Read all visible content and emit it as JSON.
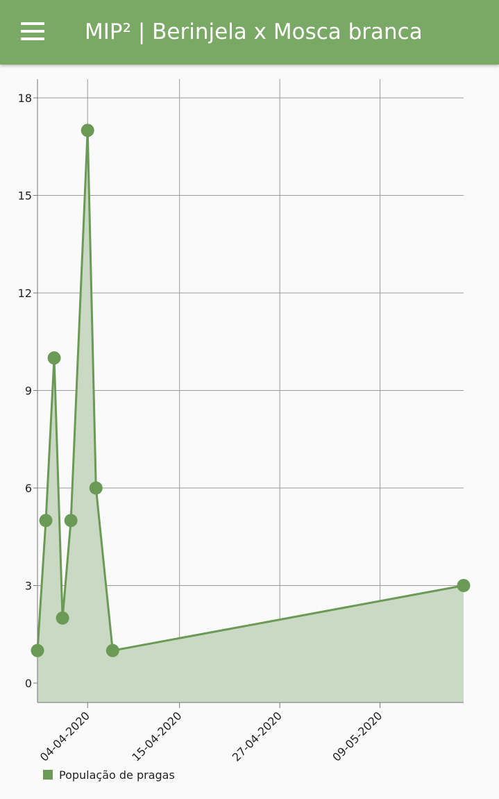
{
  "app": {
    "title": "MIP² | Berinjela x Mosca branca"
  },
  "icons": {
    "menu": "hamburger-menu-icon"
  },
  "colors": {
    "appbar": "#7aa865",
    "series_line": "#6a9a55",
    "series_fill": "#c9d9c3",
    "grid": "#9a9a9a"
  },
  "chart_data": {
    "type": "area",
    "xlabel": "",
    "ylabel": "",
    "y_ticks": [
      0,
      3,
      6,
      9,
      12,
      15,
      18
    ],
    "ylim": [
      0,
      18
    ],
    "x_ticks": [
      "04-04-2020",
      "15-04-2020",
      "27-04-2020",
      "09-05-2020"
    ],
    "x_tick_dates": [
      "2020-04-04",
      "2020-04-15",
      "2020-04-27",
      "2020-05-09"
    ],
    "xlim": [
      "2020-03-29",
      "2020-05-19"
    ],
    "grid": true,
    "legend_position": "bottom-left",
    "series": [
      {
        "name": "População de pragas",
        "points": [
          {
            "x": "2020-03-29",
            "y": 1
          },
          {
            "x": "2020-03-30",
            "y": 5
          },
          {
            "x": "2020-03-31",
            "y": 10
          },
          {
            "x": "2020-04-01",
            "y": 2
          },
          {
            "x": "2020-04-02",
            "y": 5
          },
          {
            "x": "2020-04-04",
            "y": 17
          },
          {
            "x": "2020-04-05",
            "y": 6
          },
          {
            "x": "2020-04-07",
            "y": 1
          },
          {
            "x": "2020-05-19",
            "y": 3
          }
        ]
      }
    ]
  }
}
